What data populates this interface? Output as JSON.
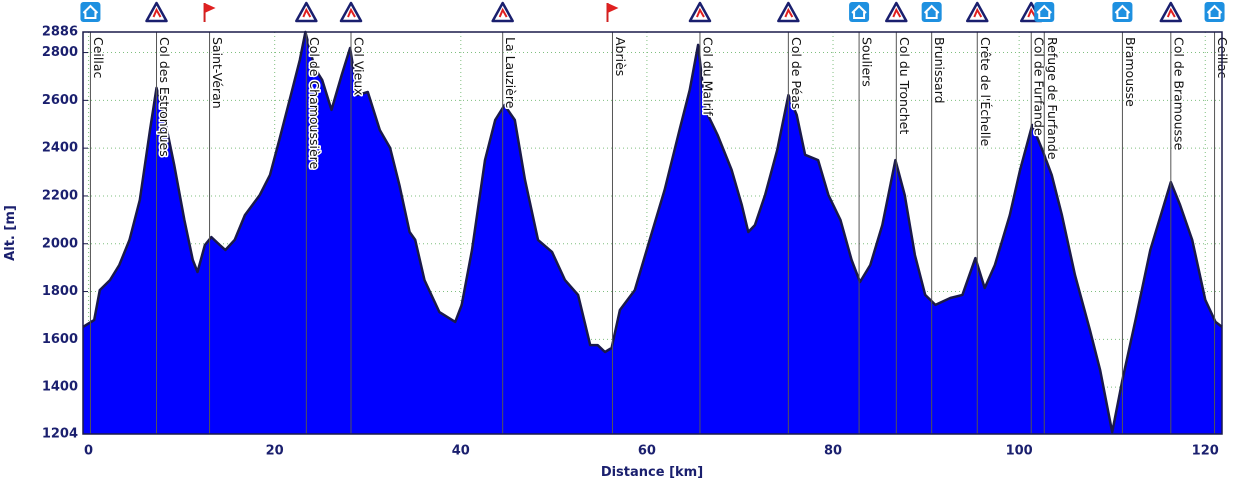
{
  "chart_data": {
    "type": "area",
    "xlabel": "Distance [km]",
    "ylabel": "Alt. [m]",
    "xlim": [
      -0.6,
      121.8
    ],
    "ylim": [
      1204,
      2886
    ],
    "xticks": [
      0,
      20,
      40,
      60,
      80,
      100,
      120
    ],
    "yticks": [
      1204,
      1400,
      1600,
      1800,
      2000,
      2200,
      2400,
      2600,
      2800,
      2886
    ],
    "grid": true,
    "color": "#0000ff",
    "line_color": "#1a1a4a",
    "x": [
      -0.6,
      0.6,
      1.2,
      2.3,
      3.3,
      4.4,
      5.5,
      6.6,
      7.3,
      8.2,
      9.2,
      10.3,
      11.2,
      11.7,
      12.5,
      13.2,
      14.1,
      14.7,
      15.7,
      16.8,
      18.4,
      19.5,
      20.5,
      21.6,
      22.7,
      23.3,
      24.3,
      25.1,
      26.1,
      27.2,
      28.1,
      28.9,
      30.0,
      31.3,
      32.4,
      33.4,
      34.5,
      35.1,
      36.1,
      37.7,
      39.4,
      40.1,
      41.2,
      42.6,
      43.7,
      44.7,
      45.8,
      46.9,
      48.3,
      49.8,
      51.2,
      52.6,
      53.9,
      54.7,
      55.5,
      56.2,
      57.1,
      58.7,
      60.3,
      61.9,
      63.5,
      64.6,
      65.5,
      66.3,
      67.6,
      69.1,
      70.2,
      70.9,
      71.6,
      72.7,
      74.0,
      75.2,
      76.1,
      77.0,
      78.4,
      79.5,
      80.8,
      82.0,
      82.9,
      84.0,
      85.3,
      86.7,
      87.7,
      88.8,
      89.9,
      91.0,
      92.6,
      93.9,
      95.3,
      96.3,
      97.4,
      99.0,
      100.1,
      101.4,
      102.5,
      103.5,
      104.6,
      106.0,
      107.6,
      108.7,
      110.0,
      111.1,
      112.5,
      114.1,
      116.3,
      117.3,
      118.6,
      120.0,
      121.1,
      121.8
    ],
    "values": [
      1652,
      1681,
      1806,
      1848,
      1911,
      2016,
      2183,
      2476,
      2652,
      2518,
      2330,
      2099,
      1932,
      1882,
      1995,
      2028,
      1995,
      1974,
      2016,
      2120,
      2204,
      2288,
      2434,
      2601,
      2769,
      2886,
      2735,
      2685,
      2560,
      2706,
      2819,
      2622,
      2635,
      2476,
      2401,
      2246,
      2049,
      2016,
      1848,
      1714,
      1673,
      1744,
      1974,
      2350,
      2518,
      2580,
      2518,
      2267,
      2016,
      1966,
      1848,
      1786,
      1576,
      1576,
      1547,
      1564,
      1723,
      1806,
      2016,
      2225,
      2476,
      2643,
      2832,
      2560,
      2455,
      2309,
      2162,
      2049,
      2078,
      2204,
      2392,
      2622,
      2539,
      2372,
      2350,
      2204,
      2099,
      1932,
      1840,
      1911,
      2078,
      2350,
      2204,
      1953,
      1786,
      1744,
      1773,
      1786,
      1940,
      1815,
      1911,
      2120,
      2309,
      2497,
      2392,
      2288,
      2120,
      1869,
      1639,
      1472,
      1212,
      1430,
      1681,
      1974,
      2258,
      2162,
      2016,
      1765,
      1673,
      1652
    ],
    "waypoints": [
      {
        "label": "Ceillac",
        "x": 0.2,
        "icon": "hut"
      },
      {
        "label": "Col des Estronques",
        "x": 7.3,
        "icon": "col"
      },
      {
        "label": "Saint-Véran",
        "x": 13.0,
        "icon": "flag"
      },
      {
        "label": "Col de Chamoussière",
        "x": 23.4,
        "icon": "col"
      },
      {
        "label": "Col Vieux",
        "x": 28.2,
        "icon": "col"
      },
      {
        "label": "La Lauzière",
        "x": 44.5,
        "icon": "col"
      },
      {
        "label": "Abriès",
        "x": 56.3,
        "icon": "flag"
      },
      {
        "label": "Col du Malrif",
        "x": 65.7,
        "icon": "col"
      },
      {
        "label": "Col de Péas",
        "x": 75.2,
        "icon": "col"
      },
      {
        "label": "Souliers",
        "x": 82.8,
        "icon": "hut"
      },
      {
        "label": "Col du Tronchet",
        "x": 86.8,
        "icon": "col"
      },
      {
        "label": "Brunissard",
        "x": 90.6,
        "icon": "hut"
      },
      {
        "label": "Crête de l'Échelle",
        "x": 95.5,
        "icon": "col"
      },
      {
        "label": "Col de Furfande",
        "x": 101.3,
        "icon": "col"
      },
      {
        "label": "Refuge de Furfande",
        "x": 102.7,
        "icon": "hut"
      },
      {
        "label": "Bramousse",
        "x": 111.1,
        "icon": "hut"
      },
      {
        "label": "Col de Bramousse",
        "x": 116.3,
        "icon": "col"
      },
      {
        "label": "Ceillac",
        "x": 121.0,
        "icon": "hut"
      }
    ]
  }
}
